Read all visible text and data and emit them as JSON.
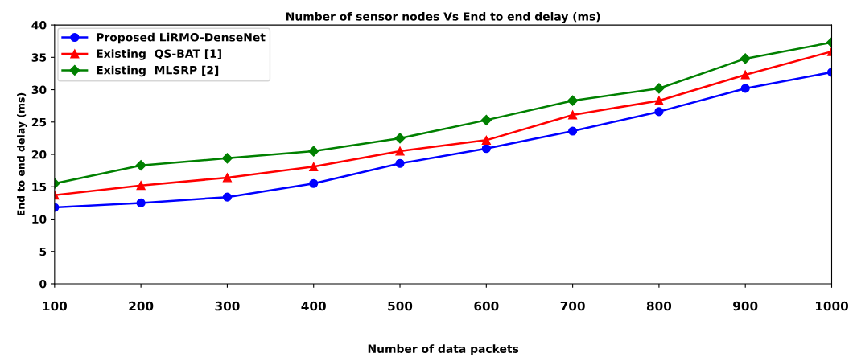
{
  "chart_data": {
    "type": "line",
    "title": "Number of sensor nodes Vs End to end delay (ms)",
    "xlabel": "Number of data packets",
    "ylabel": "End to end delay (ms)",
    "x": [
      100,
      200,
      300,
      400,
      500,
      600,
      700,
      800,
      900,
      1000
    ],
    "series": [
      {
        "name": "Proposed LiRMO-DenseNet",
        "color": "#0000ff",
        "marker": "circle",
        "values": [
          11.8,
          12.5,
          13.4,
          15.5,
          18.6,
          20.9,
          23.6,
          26.6,
          30.2,
          32.7
        ]
      },
      {
        "name": "Existing  QS-BAT [1]",
        "color": "#ff0000",
        "marker": "triangle",
        "values": [
          13.7,
          15.2,
          16.4,
          18.1,
          20.5,
          22.2,
          26.1,
          28.3,
          32.3,
          35.9
        ]
      },
      {
        "name": "Existing  MLSRP [2]",
        "color": "#008000",
        "marker": "diamond",
        "values": [
          15.5,
          18.3,
          19.4,
          20.5,
          22.5,
          25.3,
          28.3,
          30.2,
          34.8,
          37.3
        ]
      }
    ],
    "xlim": [
      100,
      1000
    ],
    "ylim": [
      0,
      40
    ],
    "xticks": [
      100,
      200,
      300,
      400,
      500,
      600,
      700,
      800,
      900,
      1000
    ],
    "yticks": [
      0,
      5,
      10,
      15,
      20,
      25,
      30,
      35,
      40
    ],
    "grid": false,
    "legend": "top left",
    "line_style": "solid"
  }
}
